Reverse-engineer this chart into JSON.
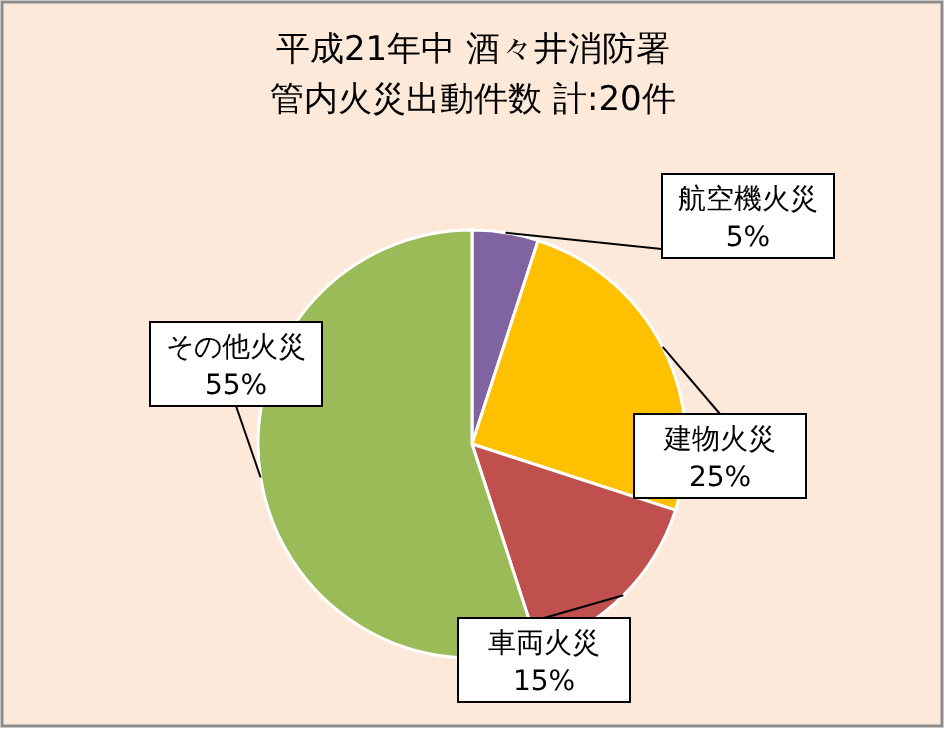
{
  "chart_data": {
    "type": "pie",
    "title": "平成21年中 酒々井消防署",
    "subtitle": "管内火災出動件数 計:20件",
    "categories": [
      "航空機火災",
      "建物火災",
      "車両火災",
      "その他火災"
    ],
    "values": [
      5,
      25,
      15,
      55
    ],
    "value_labels": [
      "5%",
      "25%",
      "15%",
      "55%"
    ],
    "colors": [
      "#8064a2",
      "#ffc000",
      "#c0504d",
      "#9bbb59"
    ]
  }
}
